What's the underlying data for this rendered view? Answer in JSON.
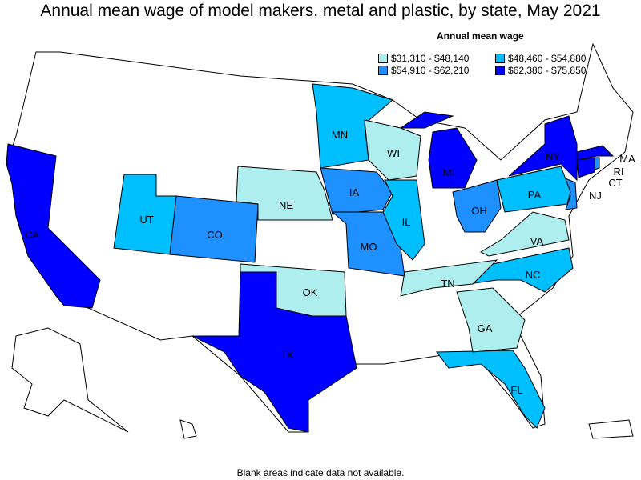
{
  "title": "Annual mean wage of model makers, metal and plastic, by state, May 2021",
  "legend": {
    "title": "Annual mean wage",
    "items": [
      {
        "label": "$31,310 - $48,140",
        "color": "#AFEEEE"
      },
      {
        "label": "$48,460 - $54,880",
        "color": "#00BFFF"
      },
      {
        "label": "$54,910 - $62,210",
        "color": "#1E90FF"
      },
      {
        "label": "$62,380 - $75,850",
        "color": "#0000FF"
      }
    ]
  },
  "states": [
    {
      "abbr": "CA",
      "class": 3
    },
    {
      "abbr": "TX",
      "class": 3
    },
    {
      "abbr": "NY",
      "class": 3
    },
    {
      "abbr": "MI",
      "class": 3
    },
    {
      "abbr": "MA",
      "class": 3
    },
    {
      "abbr": "CT",
      "class": 3
    },
    {
      "abbr": "IA",
      "class": 2
    },
    {
      "abbr": "CO",
      "class": 2
    },
    {
      "abbr": "MO",
      "class": 2
    },
    {
      "abbr": "OH",
      "class": 2
    },
    {
      "abbr": "NJ",
      "class": 2
    },
    {
      "abbr": "RI",
      "class": 2
    },
    {
      "abbr": "UT",
      "class": 1
    },
    {
      "abbr": "MN",
      "class": 1
    },
    {
      "abbr": "IL",
      "class": 1
    },
    {
      "abbr": "PA",
      "class": 1
    },
    {
      "abbr": "NC",
      "class": 1
    },
    {
      "abbr": "FL",
      "class": 1
    },
    {
      "abbr": "NE",
      "class": 0
    },
    {
      "abbr": "WI",
      "class": 0
    },
    {
      "abbr": "OK",
      "class": 0
    },
    {
      "abbr": "TN",
      "class": 0
    },
    {
      "abbr": "VA",
      "class": 0
    },
    {
      "abbr": "GA",
      "class": 0
    }
  ],
  "footer": "Blank areas indicate data not available."
}
